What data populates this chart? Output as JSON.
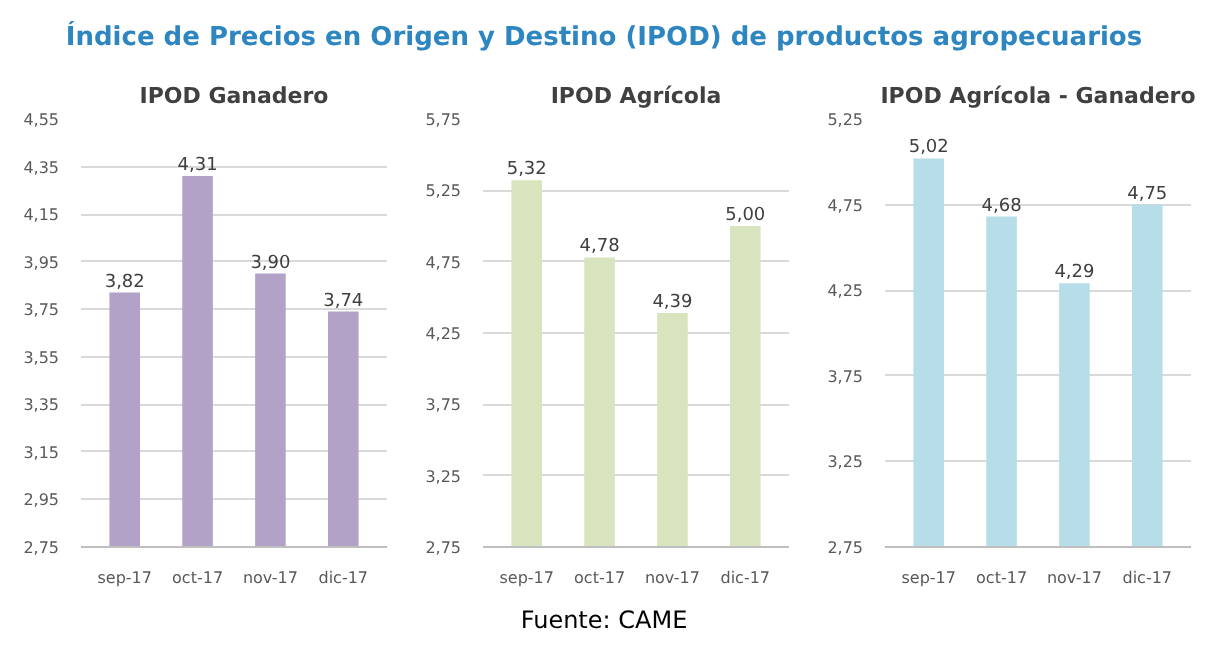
{
  "chart_data": [
    {
      "type": "other",
      "title": "Índice de Precios en Origen y Destino (IPOD) de productos agropecuarios",
      "annotations": [
        "Fuente: CAME"
      ]
    },
    {
      "type": "bar",
      "title": "IPOD Ganadero",
      "categories": [
        "sep-17",
        "oct-17",
        "nov-17",
        "dic-17"
      ],
      "values": [
        3.82,
        4.31,
        3.9,
        3.74
      ],
      "value_labels": [
        "3,82",
        "4,31",
        "3,90",
        "3,74"
      ],
      "color": "#b3a2c7",
      "ylim": [
        2.75,
        4.55
      ],
      "yticks": [
        {
          "value": 2.75,
          "label": "2,75"
        },
        {
          "value": 2.95,
          "label": "2,95"
        },
        {
          "value": 3.15,
          "label": "3,15"
        },
        {
          "value": 3.35,
          "label": "3,35"
        },
        {
          "value": 3.55,
          "label": "3,55"
        },
        {
          "value": 3.75,
          "label": "3,75"
        },
        {
          "value": 3.95,
          "label": "3,95"
        },
        {
          "value": 4.15,
          "label": "4,15"
        },
        {
          "value": 4.35,
          "label": "4,35"
        },
        {
          "value": 4.55,
          "label": "4,55"
        }
      ],
      "grid": "y"
    },
    {
      "type": "bar",
      "title": "IPOD Agrícola",
      "categories": [
        "sep-17",
        "oct-17",
        "nov-17",
        "dic-17"
      ],
      "values": [
        5.32,
        4.78,
        4.39,
        5.0
      ],
      "value_labels": [
        "5,32",
        "4,78",
        "4,39",
        "5,00"
      ],
      "color": "#d7e4bd",
      "ylim": [
        2.75,
        5.75
      ],
      "yticks": [
        {
          "value": 2.75,
          "label": "2,75"
        },
        {
          "value": 3.25,
          "label": "3,25"
        },
        {
          "value": 3.75,
          "label": "3,75"
        },
        {
          "value": 4.25,
          "label": "4,25"
        },
        {
          "value": 4.75,
          "label": "4,75"
        },
        {
          "value": 5.25,
          "label": "5,25"
        },
        {
          "value": 5.75,
          "label": "5,75"
        }
      ],
      "grid": "y"
    },
    {
      "type": "bar",
      "title": "IPOD Agrícola - Ganadero",
      "categories": [
        "sep-17",
        "oct-17",
        "nov-17",
        "dic-17"
      ],
      "values": [
        5.02,
        4.68,
        4.29,
        4.75
      ],
      "value_labels": [
        "5,02",
        "4,68",
        "4,29",
        "4,75"
      ],
      "color": "#b7dee8",
      "ylim": [
        2.75,
        5.25
      ],
      "yticks": [
        {
          "value": 2.75,
          "label": "2,75"
        },
        {
          "value": 3.25,
          "label": "3,25"
        },
        {
          "value": 3.75,
          "label": "3,75"
        },
        {
          "value": 4.25,
          "label": "4,25"
        },
        {
          "value": 4.75,
          "label": "4,75"
        },
        {
          "value": 5.25,
          "label": "5,25"
        }
      ],
      "grid": "y"
    }
  ]
}
